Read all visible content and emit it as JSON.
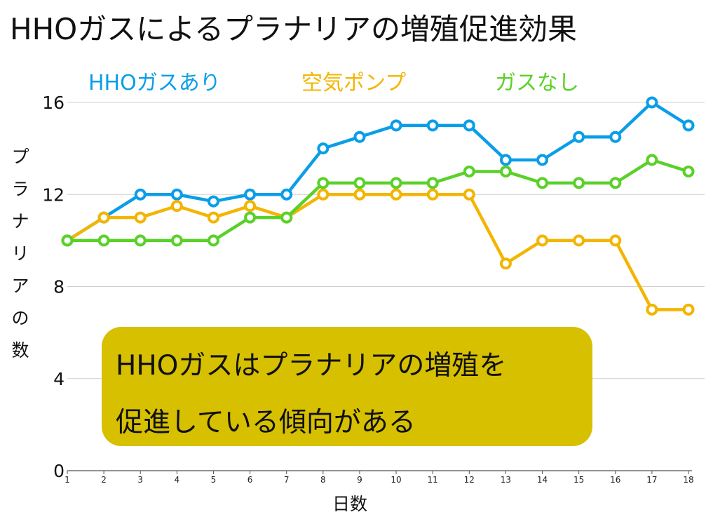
{
  "chart_data": {
    "type": "line",
    "title": "HHOガスによるプラナリアの増殖促進効果",
    "xlabel": "日数",
    "ylabel": "プラナリアの数",
    "categories": [
      "1",
      "2",
      "3",
      "4",
      "5",
      "6",
      "7",
      "8",
      "9",
      "10",
      "11",
      "12",
      "13",
      "14",
      "15",
      "16",
      "17",
      "18"
    ],
    "ylim": [
      0,
      16
    ],
    "yticks": [
      "16",
      "12",
      "8",
      "4",
      "0"
    ],
    "grid": true,
    "legend_position": "top",
    "series": [
      {
        "name": "HHOガスあり",
        "color": "#0a9ee8",
        "values": [
          10,
          11,
          12,
          12,
          11.7,
          12,
          12,
          14,
          14.5,
          15,
          15,
          15,
          13.5,
          13.5,
          14.5,
          14.5,
          16,
          15
        ]
      },
      {
        "name": "空気ポンプ",
        "color": "#f3b500",
        "values": [
          10,
          11,
          11,
          11.5,
          11,
          11.5,
          11,
          12,
          12,
          12,
          12,
          12,
          9,
          10,
          10,
          10,
          7,
          7
        ]
      },
      {
        "name": "ガスなし",
        "color": "#5ad129",
        "values": [
          10,
          10,
          10,
          10,
          10,
          11,
          11,
          12.5,
          12.5,
          12.5,
          12.5,
          13,
          13,
          12.5,
          12.5,
          12.5,
          13.5,
          13
        ]
      }
    ],
    "annotation": {
      "lines": [
        "HHOガスはプラナリアの増殖を",
        "促進している傾向がある"
      ],
      "color": "#d7c000"
    }
  }
}
